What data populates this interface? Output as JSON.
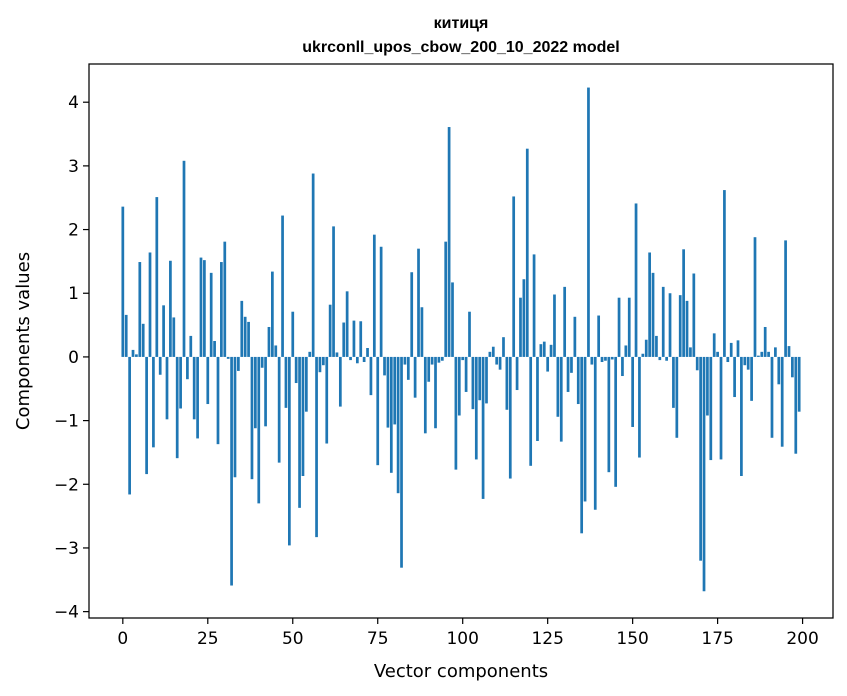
{
  "chart_data": {
    "type": "bar",
    "title_line1": "китиця",
    "title_line2": "ukrconll_upos_cbow_200_10_2022 model",
    "xlabel": "Vector components",
    "ylabel": "Components values",
    "xlim": [
      -9.95,
      208.95
    ],
    "ylim": [
      -4.1,
      4.6
    ],
    "xticks": [
      0,
      25,
      50,
      75,
      100,
      125,
      150,
      175,
      200
    ],
    "yticks": [
      -4,
      -3,
      -2,
      -1,
      0,
      1,
      2,
      3,
      4
    ],
    "bar_color": "#1f77b4",
    "grid": false,
    "values": [
      2.36,
      0.66,
      -2.16,
      0.11,
      0.04,
      1.49,
      0.52,
      -1.84,
      1.64,
      -1.42,
      2.51,
      -0.28,
      0.81,
      -0.98,
      1.51,
      0.62,
      -1.59,
      -0.81,
      3.08,
      -0.35,
      0.33,
      -0.98,
      -1.28,
      1.56,
      1.52,
      -0.74,
      1.32,
      0.25,
      -1.37,
      1.49,
      1.81,
      -0.03,
      -3.59,
      -1.89,
      -0.22,
      0.88,
      0.63,
      0.55,
      -1.92,
      -1.12,
      -2.3,
      -0.17,
      -1.09,
      0.47,
      1.34,
      0.18,
      -1.66,
      2.22,
      -0.8,
      -2.96,
      0.71,
      -0.41,
      -2.37,
      -1.87,
      -0.86,
      0.08,
      2.88,
      -2.83,
      -0.24,
      -0.13,
      -1.36,
      0.82,
      2.05,
      0.07,
      -0.78,
      0.54,
      1.03,
      -0.05,
      0.57,
      -0.1,
      0.56,
      -0.08,
      0.14,
      -0.6,
      1.92,
      -1.7,
      1.73,
      -0.29,
      -1.11,
      -1.82,
      -1.06,
      -2.14,
      -3.31,
      -0.12,
      -0.36,
      1.33,
      -0.64,
      1.7,
      0.78,
      -1.2,
      -0.39,
      -0.12,
      -1.12,
      -0.09,
      -0.06,
      1.81,
      3.61,
      1.17,
      -1.77,
      -0.92,
      -0.05,
      -0.55,
      0.71,
      -0.82,
      -1.61,
      -0.68,
      -2.23,
      -0.73,
      0.08,
      0.16,
      -0.12,
      -0.2,
      0.31,
      -0.83,
      -1.91,
      2.52,
      -0.52,
      0.93,
      1.22,
      3.27,
      -1.71,
      1.61,
      -1.32,
      0.2,
      0.24,
      -0.23,
      0.19,
      0.98,
      -0.94,
      -1.33,
      1.1,
      -0.55,
      -0.25,
      0.63,
      -0.74,
      -2.77,
      -2.27,
      4.23,
      -0.12,
      -2.4,
      0.65,
      -0.08,
      -0.06,
      -1.81,
      -0.04,
      -2.04,
      0.93,
      -0.3,
      0.18,
      0.93,
      -1.1,
      2.41,
      -1.58,
      0.05,
      0.27,
      1.64,
      1.32,
      0.33,
      -0.05,
      1.1,
      -0.06,
      1.0,
      -0.8,
      -1.27,
      0.97,
      1.69,
      0.88,
      0.15,
      1.31,
      -0.21,
      -3.2,
      -3.68,
      -0.92,
      -1.62,
      0.37,
      0.08,
      -1.61,
      2.62,
      -0.08,
      0.22,
      -0.63,
      0.26,
      -1.87,
      -0.13,
      -0.2,
      -0.69,
      1.88,
      0.02,
      0.08,
      0.47,
      0.08,
      -1.27,
      0.15,
      -0.43,
      -1.41,
      1.83,
      0.17,
      -0.32,
      -1.52,
      -0.86
    ]
  }
}
